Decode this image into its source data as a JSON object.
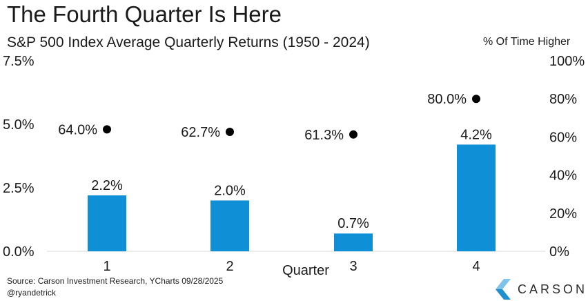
{
  "header": {
    "title": "The Fourth Quarter Is Here",
    "subtitle": "S&P 500 Index Average Quarterly Returns (1950 - 2024)",
    "right_axis_title": "% Of Time Higher"
  },
  "footer": {
    "source": "Source: Carson Investment Research, YCharts 09/28/2025",
    "handle": "@ryandetrick",
    "logo_text": "CARSON"
  },
  "colors": {
    "bar": "#0e8fd6",
    "marker": "#000000",
    "logo_blue": "#1f8fd0",
    "logo_light": "#7fc3ea"
  },
  "chart_data": {
    "type": "bar",
    "categories": [
      "1",
      "2",
      "3",
      "4"
    ],
    "xlabel": "Quarter",
    "series": [
      {
        "values": [
          2.2,
          2.0,
          0.7,
          4.2
        ],
        "value_labels": [
          "2.2%",
          "2.0%",
          "0.7%",
          "4.2%"
        ],
        "axis": "left"
      },
      {
        "values": [
          64.0,
          62.7,
          61.3,
          80.0
        ],
        "value_labels": [
          "64.0%",
          "62.7%",
          "61.3%",
          "80.0%"
        ],
        "axis": "right",
        "marker": "dot"
      }
    ],
    "ylim_left": [
      0,
      7.5
    ],
    "yticks_left": [
      "0.0%",
      "2.5%",
      "5.0%",
      "7.5%"
    ],
    "ylim_right": [
      0,
      100
    ],
    "yticks_right": [
      "0%",
      "20%",
      "40%",
      "60%",
      "80%",
      "100%"
    ],
    "grid": false
  }
}
